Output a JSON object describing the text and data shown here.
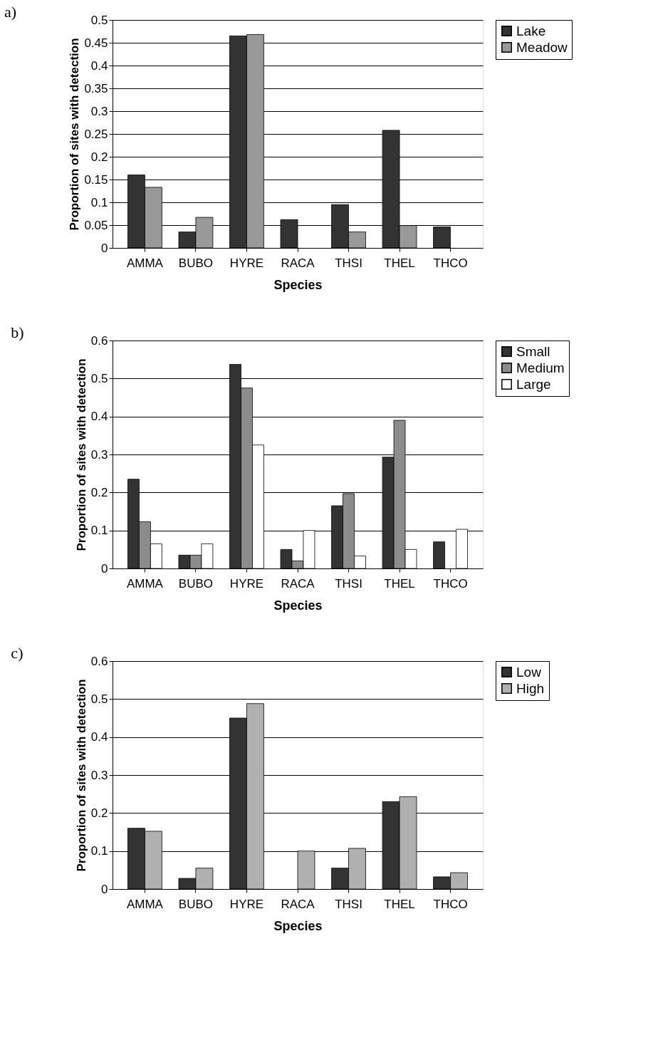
{
  "chart_data": [
    {
      "type": "bar",
      "title": "a)",
      "xlabel": "Species",
      "ylabel": "Proportion of sites with detection",
      "categories": [
        "AMMA",
        "BUBO",
        "HYRE",
        "RACA",
        "THSI",
        "THEL",
        "THCO"
      ],
      "ylim": [
        0,
        0.5
      ],
      "yticks": [
        0,
        0.05,
        0.1,
        0.15,
        0.2,
        0.25,
        0.3,
        0.35,
        0.4,
        0.45,
        0.5
      ],
      "grid": "y",
      "legend": "right",
      "series": [
        {
          "name": "Lake",
          "color": "#333333",
          "values": [
            0.16,
            0.035,
            0.465,
            0.062,
            0.095,
            0.258,
            0.046
          ]
        },
        {
          "name": "Meadow",
          "color": "#999999",
          "values": [
            0.133,
            0.067,
            0.468,
            null,
            0.035,
            0.049,
            null
          ]
        }
      ]
    },
    {
      "type": "bar",
      "title": "b)",
      "xlabel": "Species",
      "ylabel": "Proportion of sites with detection",
      "categories": [
        "AMMA",
        "BUBO",
        "HYRE",
        "RACA",
        "THSI",
        "THEL",
        "THCO"
      ],
      "ylim": [
        0,
        0.6
      ],
      "yticks": [
        0,
        0.1,
        0.2,
        0.3,
        0.4,
        0.5,
        0.6
      ],
      "grid": "y",
      "legend": "right",
      "series": [
        {
          "name": "Small",
          "color": "#333333",
          "values": [
            0.235,
            0.035,
            0.537,
            0.05,
            0.165,
            0.293,
            0.07
          ]
        },
        {
          "name": "Medium",
          "color": "#8c8c8c",
          "values": [
            0.123,
            0.035,
            0.475,
            0.02,
            0.197,
            0.39,
            null
          ]
        },
        {
          "name": "Large",
          "color": "#ffffff",
          "values": [
            0.065,
            0.065,
            0.325,
            0.1,
            0.033,
            0.05,
            0.103
          ]
        }
      ]
    },
    {
      "type": "bar",
      "title": "c)",
      "xlabel": "Species",
      "ylabel": "Proportion of sites with detection",
      "categories": [
        "AMMA",
        "BUBO",
        "HYRE",
        "RACA",
        "THSI",
        "THEL",
        "THCO"
      ],
      "ylim": [
        0,
        0.6
      ],
      "yticks": [
        0,
        0.1,
        0.2,
        0.3,
        0.4,
        0.5,
        0.6
      ],
      "grid": "y",
      "legend": "right",
      "series": [
        {
          "name": "Low",
          "color": "#333333",
          "values": [
            0.16,
            0.028,
            0.45,
            null,
            0.055,
            0.23,
            0.032
          ]
        },
        {
          "name": "High",
          "color": "#b0b0b0",
          "values": [
            0.152,
            0.055,
            0.488,
            0.1,
            0.107,
            0.243,
            0.043
          ]
        }
      ]
    }
  ]
}
